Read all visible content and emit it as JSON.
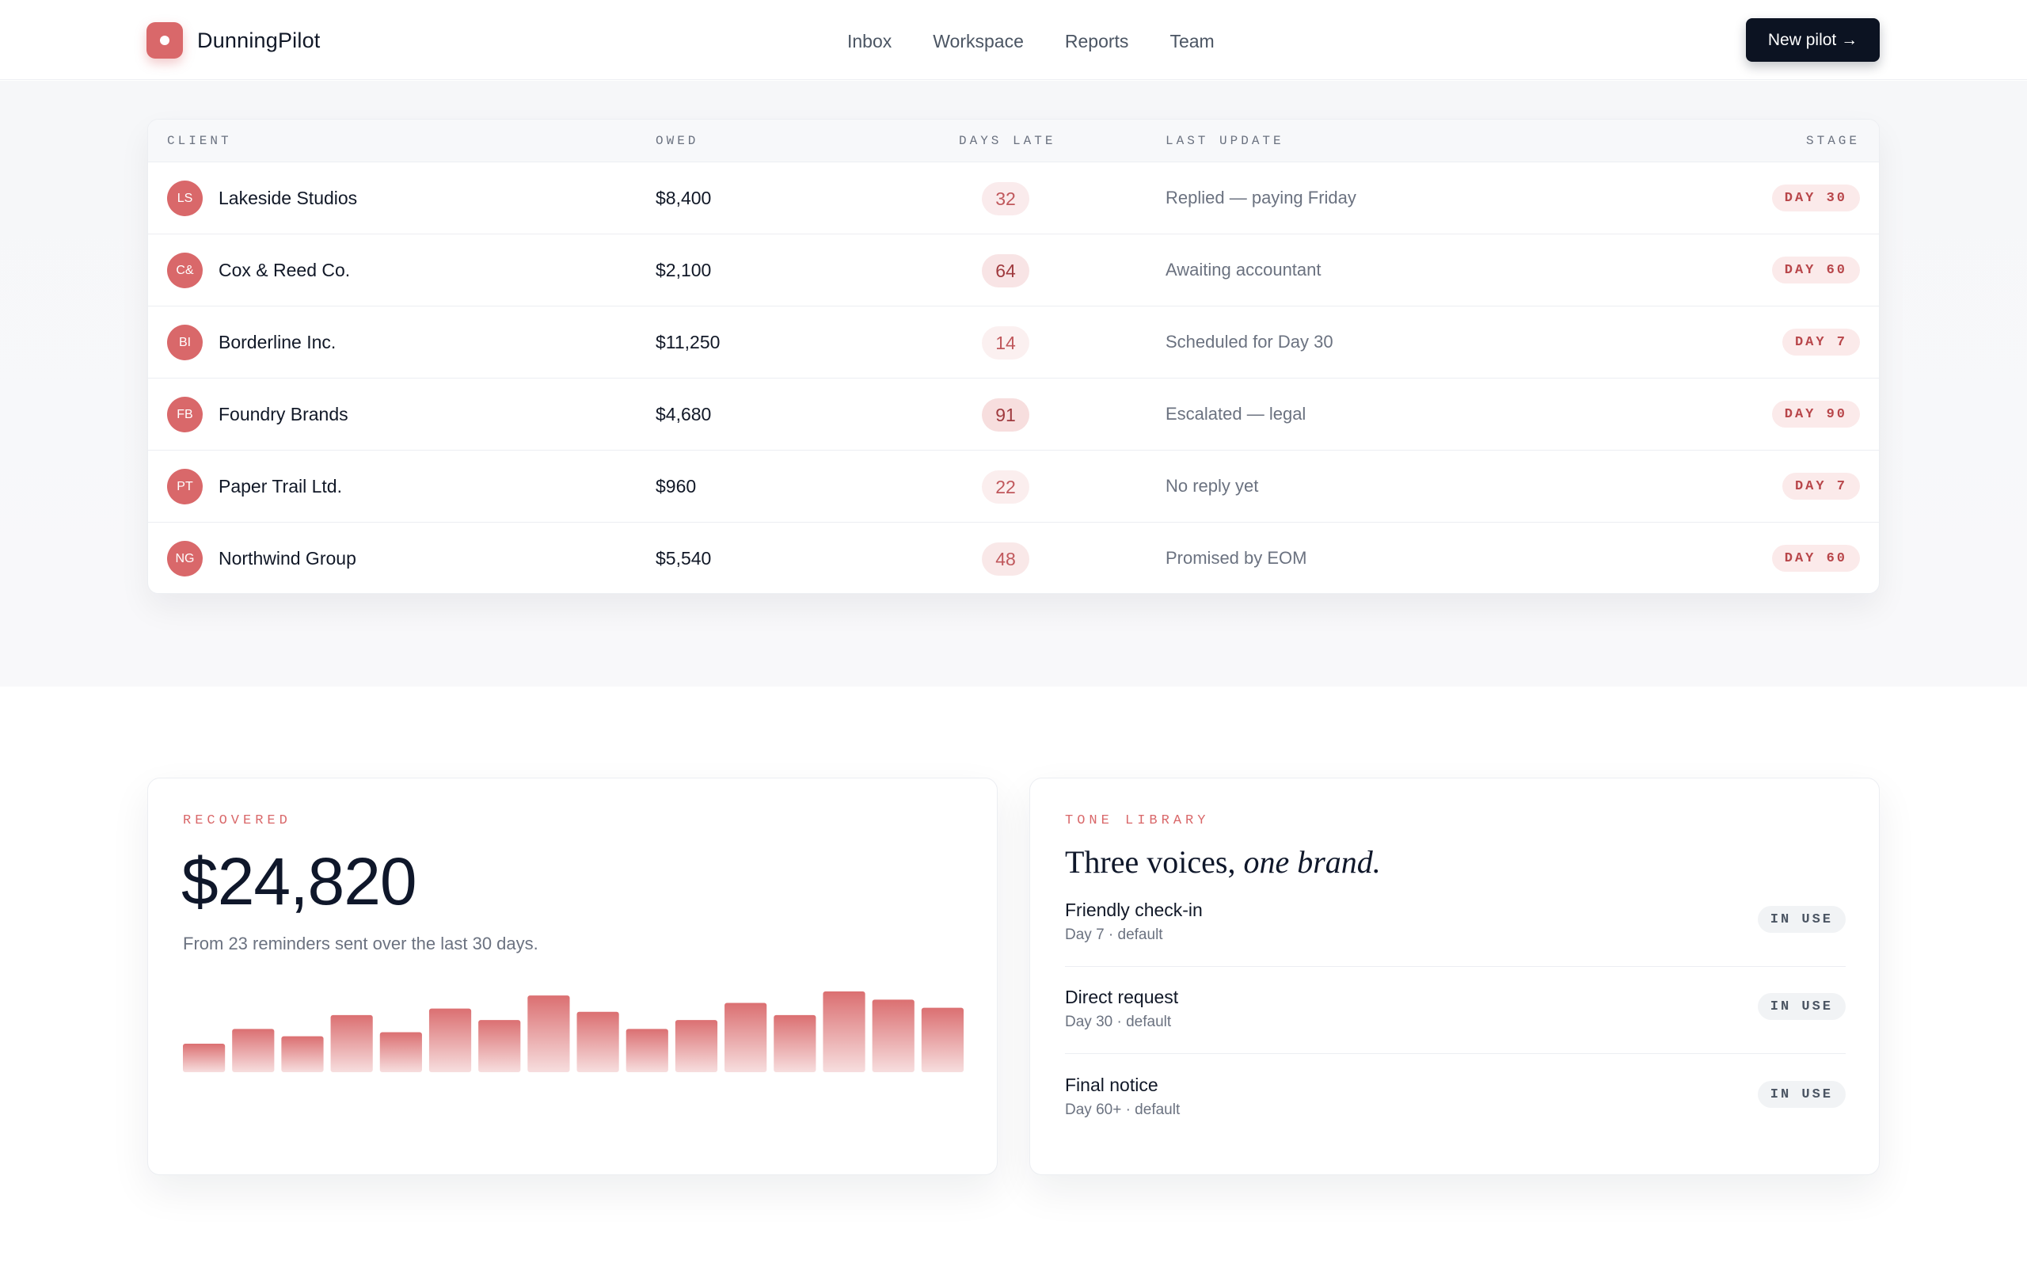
{
  "brand": {
    "name": "DunningPilot"
  },
  "nav": [
    "Inbox",
    "Workspace",
    "Reports",
    "Team"
  ],
  "cta": {
    "label": "New pilot →"
  },
  "colors": {
    "accent": "#d9686a",
    "dark": "#0c1322",
    "muted": "#6b7280"
  },
  "table": {
    "headers": {
      "client": "CLIENT",
      "owed": "OWED",
      "days_late": "DAYS LATE",
      "last_update": "LAST UPDATE",
      "stage": "STAGE"
    },
    "rows": [
      {
        "initials": "LS",
        "client": "Lakeside Studios",
        "owed": "$8,400",
        "days_late": "32",
        "last_update": "Replied — paying Friday",
        "stage": "DAY 30"
      },
      {
        "initials": "C&",
        "client": "Cox & Reed Co.",
        "owed": "$2,100",
        "days_late": "64",
        "last_update": "Awaiting accountant",
        "stage": "DAY 60"
      },
      {
        "initials": "BI",
        "client": "Borderline Inc.",
        "owed": "$11,250",
        "days_late": "14",
        "last_update": "Scheduled for Day 30",
        "stage": "DAY 7"
      },
      {
        "initials": "FB",
        "client": "Foundry Brands",
        "owed": "$4,680",
        "days_late": "91",
        "last_update": "Escalated — legal",
        "stage": "DAY 90"
      },
      {
        "initials": "PT",
        "client": "Paper Trail Ltd.",
        "owed": "$960",
        "days_late": "22",
        "last_update": "No reply yet",
        "stage": "DAY 7"
      },
      {
        "initials": "NG",
        "client": "Northwind Group",
        "owed": "$5,540",
        "days_late": "48",
        "last_update": "Promised by EOM",
        "stage": "DAY 60"
      }
    ]
  },
  "recovered": {
    "eyebrow": "RECOVERED",
    "amount": "$24,820",
    "subtext": "From 23 reminders sent over the last 30 days."
  },
  "chart_data": {
    "type": "bar",
    "values": [
      35,
      53,
      44,
      70,
      49,
      78,
      64,
      94,
      74,
      53,
      64,
      85,
      70,
      99,
      89,
      79
    ],
    "ylim": [
      0,
      100
    ],
    "title": "",
    "xlabel": "",
    "ylabel": ""
  },
  "tone": {
    "eyebrow": "TONE LIBRARY",
    "title_main": "Three voices, ",
    "title_accent": "one brand.",
    "items": [
      {
        "name": "Friendly check-in",
        "meta": "Day 7 · default",
        "status": "IN USE"
      },
      {
        "name": "Direct request",
        "meta": "Day 30 · default",
        "status": "IN USE"
      },
      {
        "name": "Final notice",
        "meta": "Day 60+ · default",
        "status": "IN USE"
      }
    ]
  }
}
